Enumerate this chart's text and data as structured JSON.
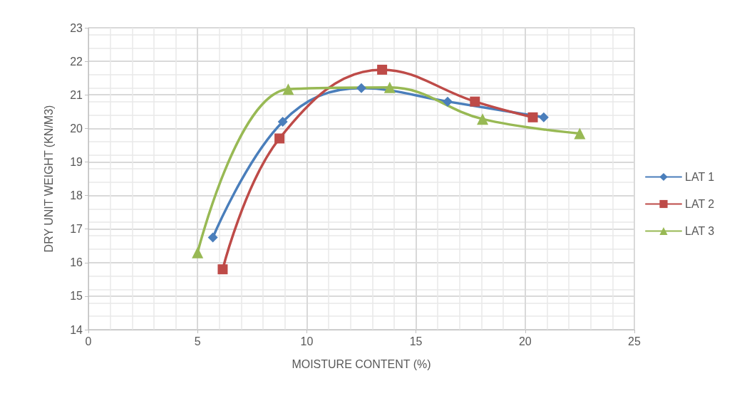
{
  "chart_data": {
    "type": "line",
    "xlabel": "MOISTURE CONTENT (%)",
    "ylabel": "DRY UNIT WEIGHT (KN/M3)",
    "xlim": [
      0,
      25
    ],
    "xticks": [
      0,
      5,
      10,
      15,
      20,
      25
    ],
    "ylim": [
      14,
      23
    ],
    "yticks": [
      14,
      15,
      16,
      17,
      18,
      19,
      20,
      21,
      22,
      23
    ],
    "grid": true,
    "legend": "right",
    "line_style": "solid",
    "series": [
      {
        "name": "LAT 1",
        "color": "#4a7ebb",
        "marker": "diamond",
        "x": [
          5.7,
          8.9,
          12.5,
          16.45,
          20.85
        ],
        "values": [
          16.75,
          20.2,
          21.2,
          20.8,
          20.33
        ]
      },
      {
        "name": "LAT 2",
        "color": "#be4b48",
        "marker": "square",
        "x": [
          6.15,
          8.75,
          13.45,
          17.7,
          20.35
        ],
        "values": [
          15.8,
          19.7,
          21.75,
          20.8,
          20.33
        ]
      },
      {
        "name": "LAT 3",
        "color": "#98b954",
        "marker": "triangle",
        "x": [
          5.0,
          9.15,
          13.8,
          18.05,
          22.5
        ],
        "values": [
          16.3,
          21.17,
          21.22,
          20.28,
          19.85
        ]
      }
    ]
  }
}
